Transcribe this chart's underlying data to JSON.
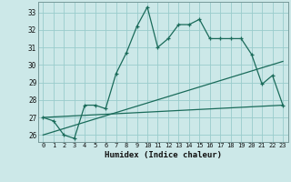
{
  "xlabel": "Humidex (Indice chaleur)",
  "bg_color": "#cce8e8",
  "grid_color": "#99cccc",
  "line_color": "#1a6b5a",
  "xlim": [
    -0.5,
    23.5
  ],
  "ylim": [
    25.6,
    33.6
  ],
  "yticks": [
    26,
    27,
    28,
    29,
    30,
    31,
    32,
    33
  ],
  "xticks": [
    0,
    1,
    2,
    3,
    4,
    5,
    6,
    7,
    8,
    9,
    10,
    11,
    12,
    13,
    14,
    15,
    16,
    17,
    18,
    19,
    20,
    21,
    22,
    23
  ],
  "series1_x": [
    0,
    1,
    2,
    3,
    4,
    5,
    6,
    7,
    8,
    9,
    10,
    11,
    12,
    13,
    14,
    15,
    16,
    17,
    18,
    19,
    20,
    21,
    22,
    23
  ],
  "series1_y": [
    27.0,
    26.8,
    26.0,
    25.8,
    27.7,
    27.7,
    27.5,
    29.5,
    30.7,
    32.2,
    33.3,
    31.0,
    31.5,
    32.3,
    32.3,
    32.6,
    31.5,
    31.5,
    31.5,
    31.5,
    30.6,
    28.9,
    29.4,
    27.7
  ],
  "series2_x": [
    0,
    23
  ],
  "series2_y": [
    27.0,
    27.7
  ],
  "series3_x": [
    0,
    23
  ],
  "series3_y": [
    26.0,
    30.2
  ],
  "marker": "+"
}
